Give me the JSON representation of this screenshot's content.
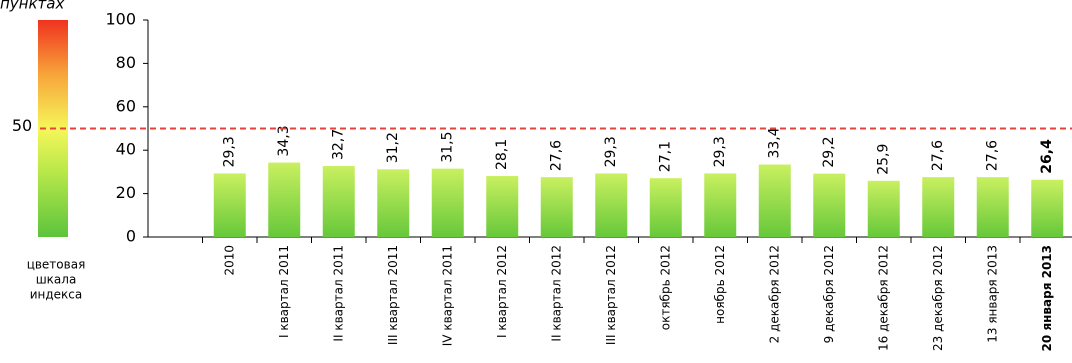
{
  "chart_data": {
    "type": "bar",
    "y_axis_label": "пунктах",
    "scale_caption": [
      "цветовая",
      "шкала",
      "индекса"
    ],
    "categories": [
      null,
      "2010",
      "I квартал 2011",
      "II квартал 2011",
      "III квартал 2011",
      "IV квартал 2011",
      "I квартал 2012",
      "II квартал 2012",
      "III квартал 2012",
      "октябрь 2012",
      "ноябрь 2012",
      "2 декабря 2012",
      "9 декабря 2012",
      "16 декабря 2012",
      "23 декабря 2012",
      "13 января 2013",
      "20 января 2013"
    ],
    "values": [
      null,
      29.3,
      34.3,
      32.7,
      31.2,
      31.5,
      28.1,
      27.6,
      29.3,
      27.1,
      29.3,
      33.4,
      29.2,
      25.9,
      27.6,
      27.6,
      26.4
    ],
    "value_labels": [
      null,
      "29,3",
      "34,3",
      "32,7",
      "31,2",
      "31,5",
      "28,1",
      "27,6",
      "29,3",
      "27,1",
      "29,3",
      "33,4",
      "29,2",
      "25,9",
      "27,6",
      "27,6",
      "26,4"
    ],
    "color": "#8ad64a",
    "ylim": [
      0,
      100
    ],
    "yticks": [
      0,
      20,
      40,
      60,
      80,
      100
    ],
    "reference_line": {
      "value": 50,
      "color": "#e8413c"
    }
  }
}
